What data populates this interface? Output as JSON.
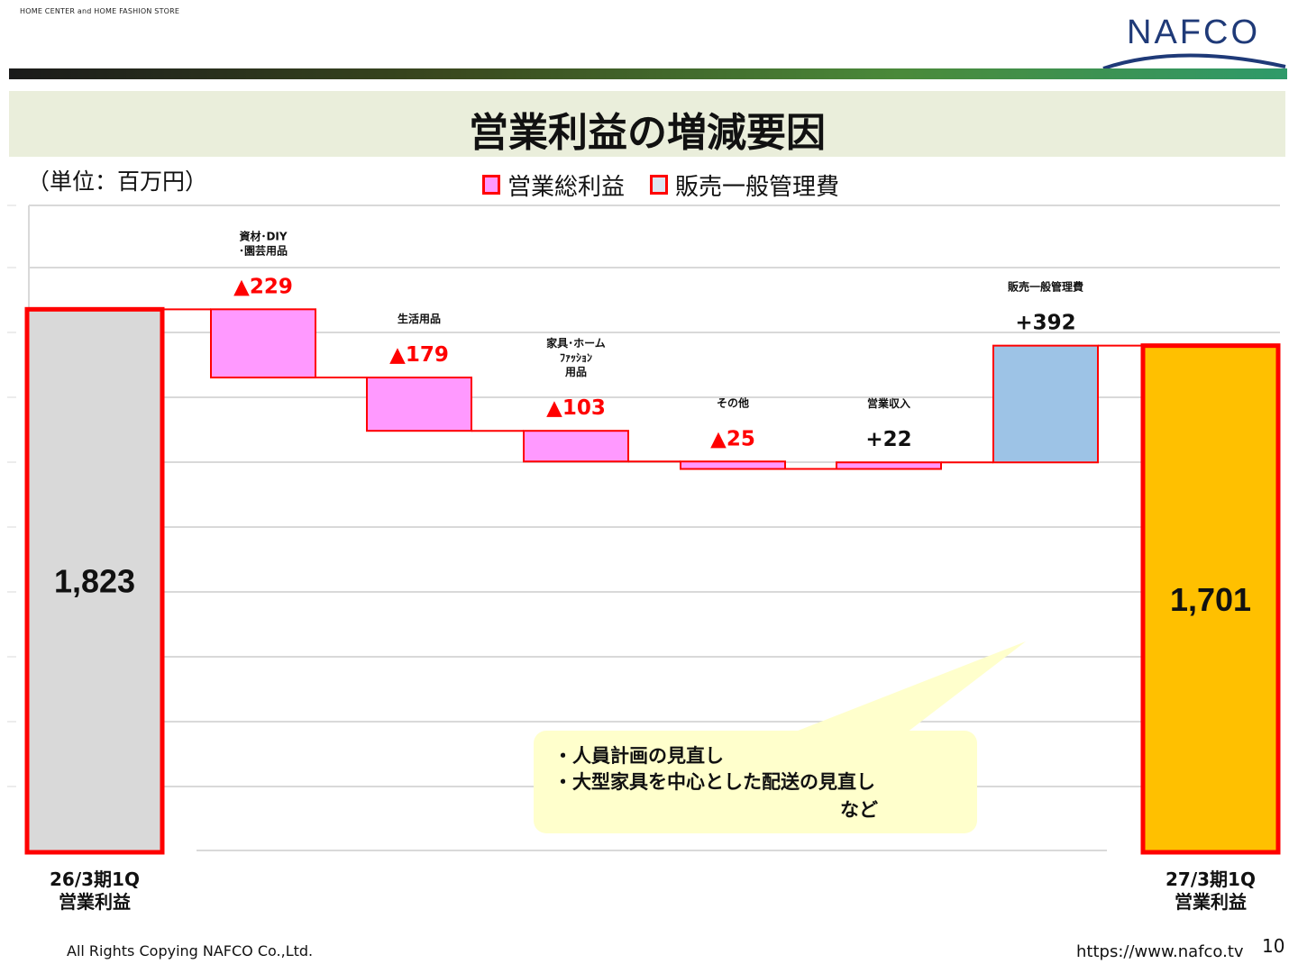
{
  "header": {
    "tagline": "HOME CENTER and HOME FASHION STORE",
    "logo_text": "NAFCO",
    "title": "営業利益の増減要因"
  },
  "unit_label": "（単位：百万円）",
  "legend": [
    {
      "label": "営業総利益",
      "color": "#ff99ff"
    },
    {
      "label": "販売一般管理費",
      "color": "#dce6f1"
    }
  ],
  "chart_data": {
    "type": "bar",
    "subtype": "waterfall",
    "title": "営業利益の増減要因",
    "unit": "百万円",
    "categories": [
      "26/3期1Q 営業利益",
      "資材・DIY・園芸用品",
      "生活用品",
      "家具・ホームファッション用品",
      "その他",
      "営業収入",
      "販売一般管理費",
      "27/3期1Q 営業利益"
    ],
    "bars": [
      {
        "label_lines": [
          "26/3期1Q",
          "営業利益"
        ],
        "kind": "total",
        "value": 1823,
        "value_label": "1,823",
        "color": "#d9d9d9"
      },
      {
        "label_lines": [
          "資材･DIY",
          "･園芸用品"
        ],
        "kind": "delta",
        "value": -229,
        "value_label": "▲229",
        "color": "#ff99ff"
      },
      {
        "label_lines": [
          "生活用品"
        ],
        "kind": "delta",
        "value": -179,
        "value_label": "▲179",
        "color": "#ff99ff"
      },
      {
        "label_lines": [
          "家具･ホーム",
          "ﾌｧｯｼｮﾝ",
          "用品"
        ],
        "kind": "delta",
        "value": -103,
        "value_label": "▲103",
        "color": "#ff99ff"
      },
      {
        "label_lines": [
          "その他"
        ],
        "kind": "delta",
        "value": -25,
        "value_label": "▲25",
        "color": "#ff99ff"
      },
      {
        "label_lines": [
          "営業収入"
        ],
        "kind": "delta",
        "value": 22,
        "value_label": "+22",
        "color": "#ff99ff"
      },
      {
        "label_lines": [
          "販売一般管理費"
        ],
        "kind": "delta",
        "value": 392,
        "value_label": "+392",
        "color": "#9dc3e6"
      },
      {
        "label_lines": [
          "27/3期1Q",
          "営業利益"
        ],
        "kind": "total",
        "value": 1701,
        "value_label": "1,701",
        "color": "#ffc000"
      }
    ],
    "grid": true
  },
  "callout": {
    "lines": [
      "・人員計画の見直し",
      "・大型家具を中心とした配送の見直し"
    ],
    "suffix": "など"
  },
  "footer": {
    "copyright": "All Rights Copying NAFCO Co.,Ltd.",
    "url": "https://www.nafco.tv",
    "page_number": "10"
  }
}
